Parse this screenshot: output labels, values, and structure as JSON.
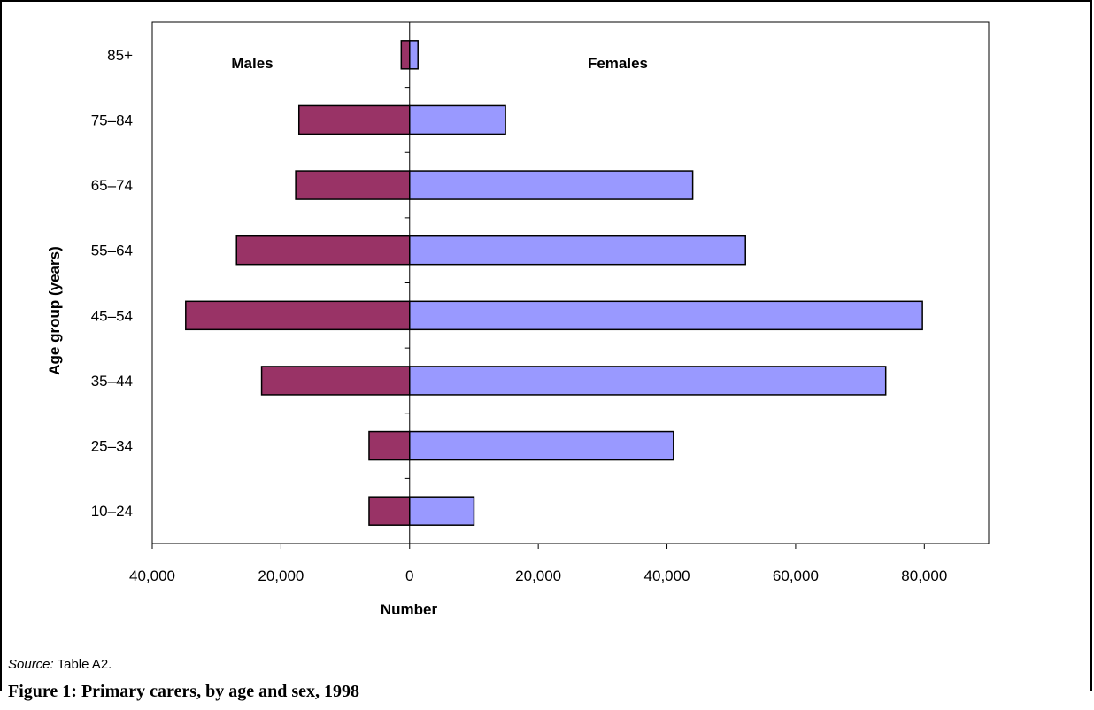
{
  "figure": {
    "source_label": "Source:",
    "source_text": "Table A2.",
    "caption": "Figure 1: Primary carers, by age and sex, 1998"
  },
  "chart_data": {
    "type": "bar",
    "orientation": "horizontal",
    "layout": "population-pyramid",
    "categories": [
      "10–24",
      "25–34",
      "35–44",
      "45–54",
      "55–64",
      "65–74",
      "75–84",
      "85+"
    ],
    "series": [
      {
        "name": "Males",
        "color": "#993366",
        "values": [
          6300,
          6300,
          23000,
          34800,
          26900,
          17700,
          17200,
          1300
        ]
      },
      {
        "name": "Females",
        "color": "#9999ff",
        "values": [
          10000,
          41000,
          74000,
          79700,
          52200,
          44000,
          14900,
          1300
        ]
      }
    ],
    "xlabel": "Number",
    "ylabel": "Age group (years)",
    "xlim": [
      -40000,
      90000
    ],
    "x_ticks": [
      -40000,
      -20000,
      0,
      20000,
      40000,
      60000,
      80000
    ],
    "x_tick_labels": [
      "40,000",
      "20,000",
      "0",
      "20,000",
      "40,000",
      "60,000",
      "80,000"
    ],
    "grid": false,
    "legend": "in-plot labels, top-left and top-center"
  }
}
